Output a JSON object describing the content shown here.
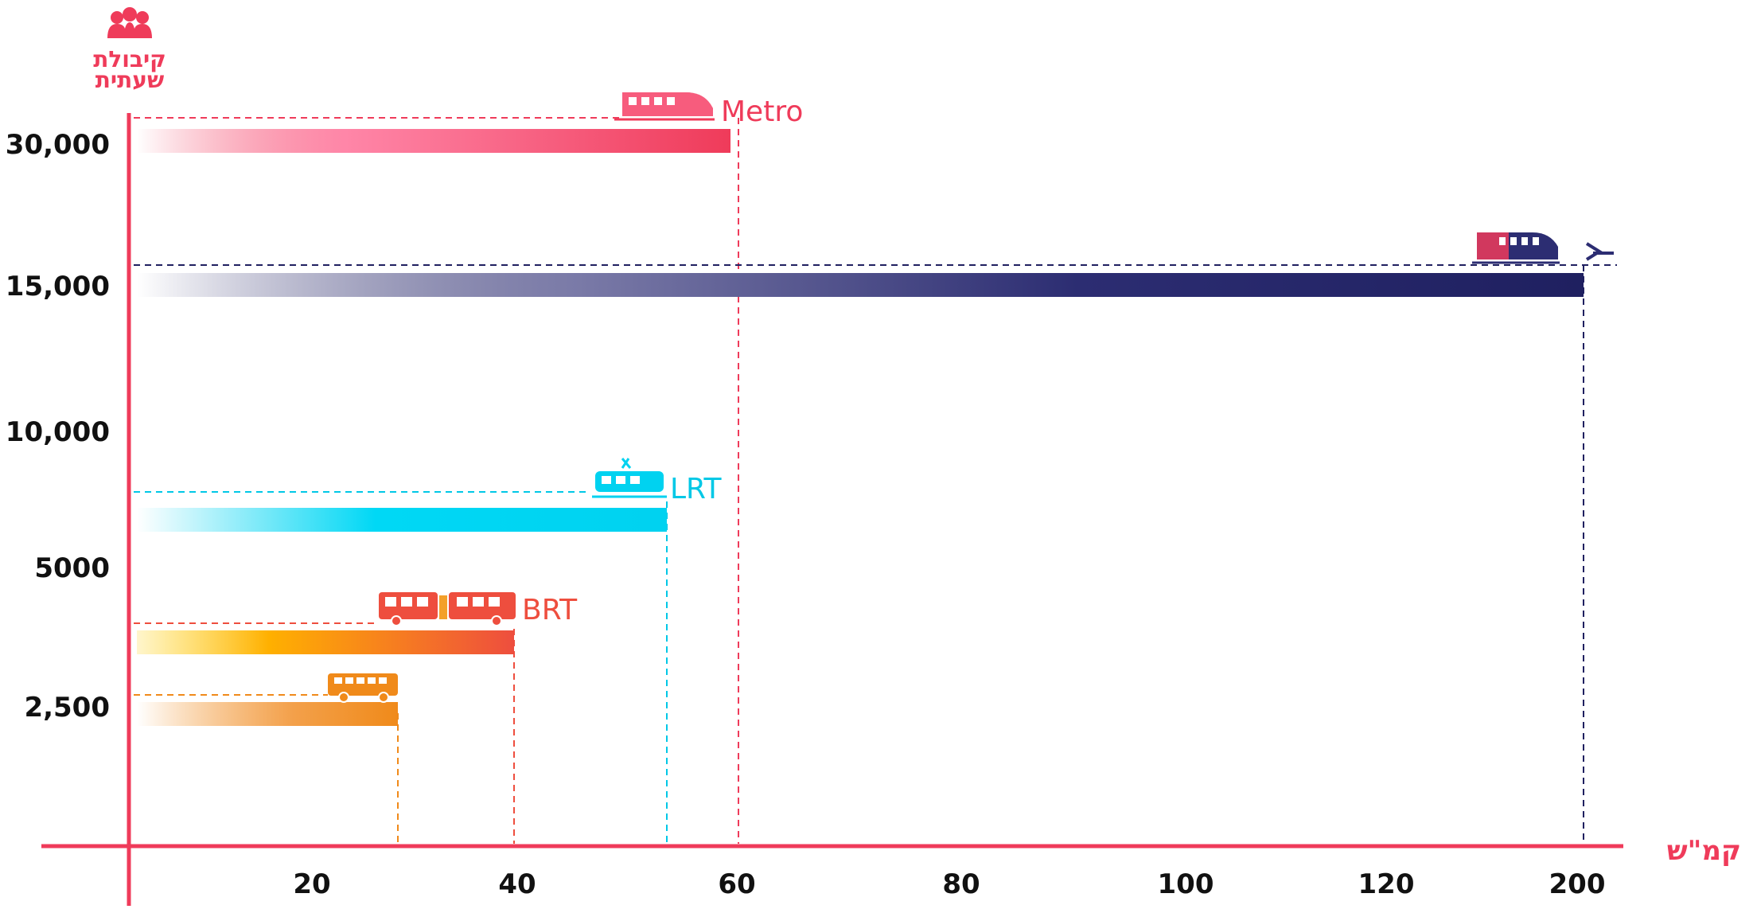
{
  "chart_data": {
    "type": "bar",
    "orientation": "horizontal",
    "title": "",
    "ylabel": "קיבולת שעתית",
    "xlabel": "קמ\"ש",
    "x_ticks": [
      "20",
      "40",
      "60",
      "80",
      "100",
      "120",
      "200"
    ],
    "y_ticks": [
      "30,000",
      "15,000",
      "10,000",
      "5000",
      "2,500"
    ],
    "series": [
      {
        "label": "Metro",
        "speed": 60,
        "capacity": "30,000",
        "color": "#ef3b5a",
        "icon": "metro-train-icon"
      },
      {
        "label": "",
        "speed": 200,
        "capacity": "15,000",
        "color": "#1f2060",
        "icon": "israel-railways-train-icon"
      },
      {
        "label": "LRT",
        "speed": 54,
        "capacity": "5000-7500",
        "color": "#00d2f0",
        "icon": "light-rail-icon"
      },
      {
        "label": "BRT",
        "speed": 39,
        "capacity": "3,000-3,750",
        "color": "#ee4e3e",
        "icon": "articulated-bus-icon"
      },
      {
        "label": "",
        "speed": 28,
        "capacity": "2,000-2,500",
        "color": "#f08a1a",
        "icon": "bus-icon"
      }
    ],
    "legend": "none",
    "grid": false
  },
  "colors": {
    "axis": "#ef3b5a",
    "text": "#111111"
  }
}
